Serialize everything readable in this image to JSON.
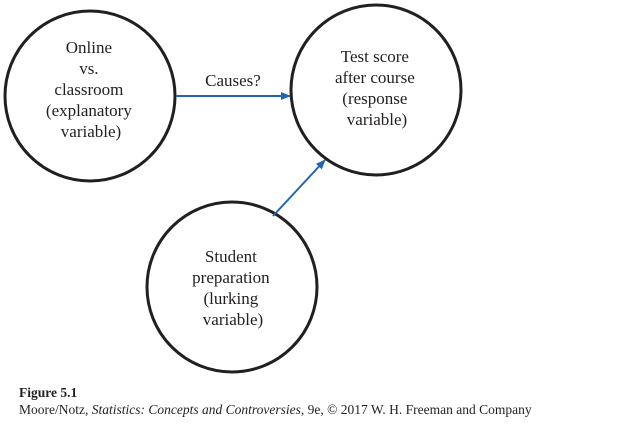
{
  "diagram": {
    "colors": {
      "circle_stroke": "#231f20",
      "arrow": "#1f66ad",
      "text": "#231f20"
    },
    "nodes": [
      {
        "id": "online-vs-classroom",
        "lines": [
          "Online",
          "vs.",
          "classroom",
          "(explanatory",
          "variable)"
        ]
      },
      {
        "id": "test-score",
        "lines": [
          "Test score",
          "after course",
          "(response",
          "variable)"
        ]
      },
      {
        "id": "student-preparation",
        "lines": [
          "Student",
          "preparation",
          "(lurking",
          "variable)"
        ]
      }
    ],
    "edges": [
      {
        "from": "online-vs-classroom",
        "to": "test-score",
        "label": "Causes?"
      },
      {
        "from": "student-preparation",
        "to": "test-score",
        "label": ""
      }
    ]
  },
  "caption": {
    "figure_label": "Figure 5.1",
    "credit_prefix": "Moore/Notz, ",
    "credit_title": "Statistics: Concepts and Controversies",
    "credit_suffix": ", 9e, © 2017 W. H. Freeman and Company"
  }
}
